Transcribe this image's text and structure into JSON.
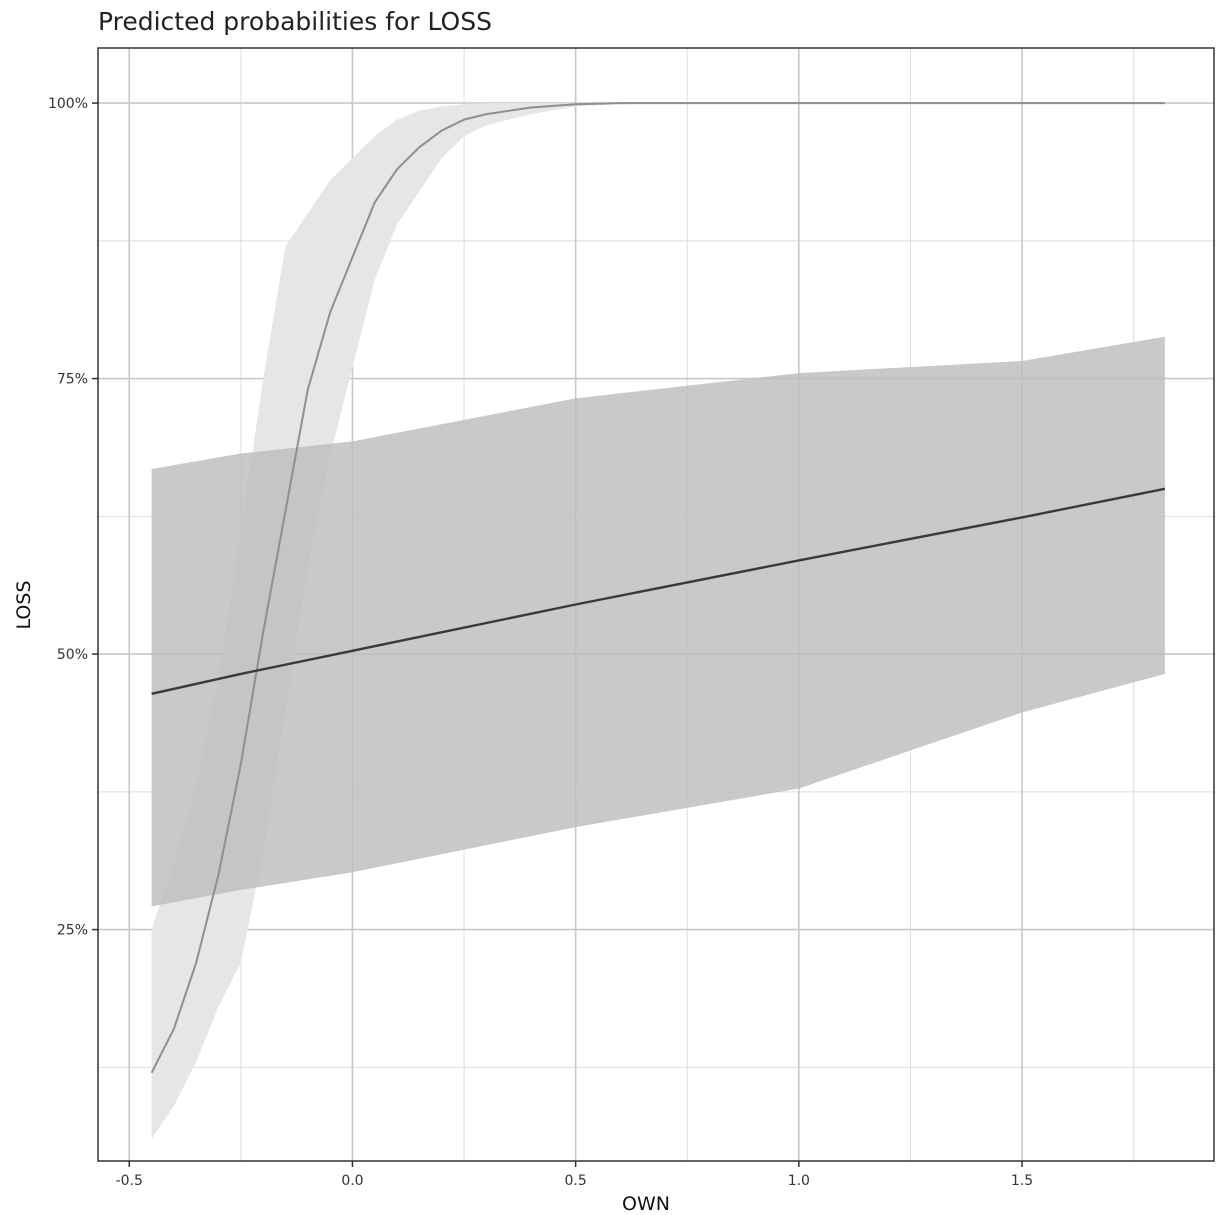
{
  "chart_data": {
    "type": "line",
    "title": "Predicted probabilities for LOSS",
    "xlabel": "OWN",
    "ylabel": "LOSS",
    "xlim": [
      -0.57,
      1.93
    ],
    "ylim": [
      0.04,
      1.05
    ],
    "x_ticks": [
      -0.5,
      0.0,
      0.5,
      1.0,
      1.5
    ],
    "x_tick_labels": [
      "-0.5",
      "0.0",
      "0.5",
      "1.0",
      "1.5"
    ],
    "y_ticks": [
      0.25,
      0.5,
      0.75,
      1.0
    ],
    "y_tick_labels": [
      "25%",
      "50%",
      "75%",
      "100%"
    ],
    "grid": true,
    "legend": "none",
    "colors": {
      "band_light": "#e6e6e6",
      "band_dark": "#bdbdbd",
      "line_light": "#8f8f8f",
      "line_dark": "#3a3a3a"
    },
    "series": [
      {
        "x": [
          -0.45,
          -0.4,
          -0.35,
          -0.3,
          -0.25,
          -0.2,
          -0.15,
          -0.1,
          -0.05,
          0.0,
          0.05,
          0.1,
          0.15,
          0.2,
          0.25,
          0.3,
          0.4,
          0.5,
          0.6,
          0.75,
          1.0,
          1.25,
          1.5,
          1.82
        ],
        "values": [
          0.12,
          0.16,
          0.22,
          0.3,
          0.4,
          0.52,
          0.63,
          0.74,
          0.81,
          0.86,
          0.91,
          0.94,
          0.96,
          0.975,
          0.985,
          0.99,
          0.996,
          0.999,
          1.0,
          1.0,
          1.0,
          1.0,
          1.0,
          1.0
        ],
        "lower": [
          0.06,
          0.09,
          0.13,
          0.18,
          0.22,
          0.32,
          0.45,
          0.58,
          0.68,
          0.76,
          0.84,
          0.89,
          0.92,
          0.95,
          0.97,
          0.98,
          0.99,
          0.997,
          0.999,
          1.0,
          1.0,
          1.0,
          1.0,
          1.0
        ],
        "upper": [
          0.25,
          0.31,
          0.38,
          0.48,
          0.61,
          0.75,
          0.87,
          0.9,
          0.93,
          0.95,
          0.97,
          0.985,
          0.993,
          0.997,
          0.999,
          1.0,
          1.0,
          1.0,
          1.0,
          1.0,
          1.0,
          1.0,
          1.0,
          1.0
        ]
      },
      {
        "x": [
          -0.45,
          -0.25,
          0.0,
          0.5,
          1.0,
          1.5,
          1.82
        ],
        "values": [
          0.464,
          0.482,
          0.503,
          0.545,
          0.585,
          0.624,
          0.65
        ],
        "lower": [
          0.271,
          0.286,
          0.302,
          0.343,
          0.378,
          0.447,
          0.482
        ],
        "upper": [
          0.668,
          0.682,
          0.693,
          0.732,
          0.755,
          0.766,
          0.788
        ]
      }
    ]
  }
}
